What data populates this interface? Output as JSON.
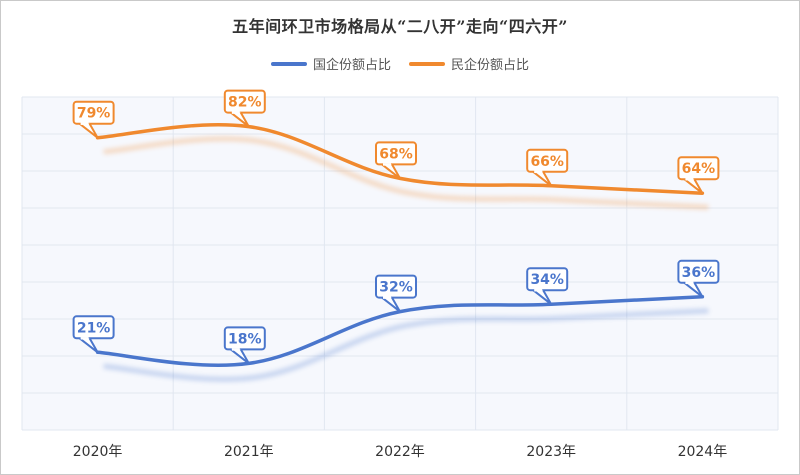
{
  "colors": {
    "state": "#4a76cc",
    "private": "#f0892e",
    "grid": "#e1e7f0",
    "plot_bg": "#f6f8fd",
    "axis_text": "#333333"
  },
  "chart_data": {
    "type": "line",
    "title": "五年间环卫市场格局从“二八开”走向“四六开”",
    "categories": [
      "2020年",
      "2021年",
      "2022年",
      "2023年",
      "2024年"
    ],
    "series": [
      {
        "name": "国企份额占比",
        "values": [
          21,
          18,
          32,
          34,
          36
        ],
        "labels": [
          "21%",
          "18%",
          "32%",
          "34%",
          "36%"
        ]
      },
      {
        "name": "民企份额占比",
        "values": [
          79,
          82,
          68,
          66,
          64
        ],
        "labels": [
          "79%",
          "82%",
          "68%",
          "66%",
          "64%"
        ]
      }
    ],
    "ylim": [
      0,
      90
    ],
    "smooth": true,
    "grid": true,
    "legend_position": "top-center"
  }
}
